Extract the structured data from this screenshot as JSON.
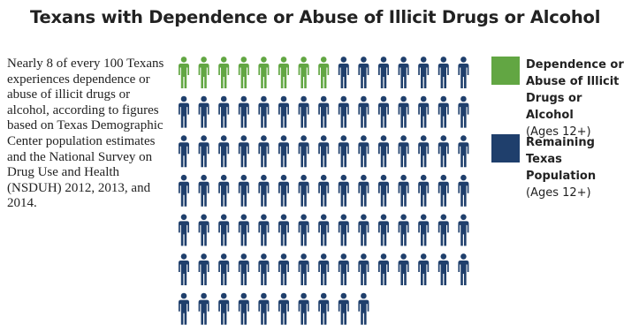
{
  "page": {
    "title": "Texans with Dependence or Abuse of Illicit Drugs or Alcohol",
    "description": "Nearly 8 of every 100 Texans experiences dependence or abuse of illicit drugs or alcohol, according to figures based on Texas Demographic Center population estimates and the National Survey on Drug Use and Health (NSDUH) 2012, 2013, and 2014."
  },
  "legend": {
    "items": [
      {
        "line1": "Dependence or",
        "line2": "Abuse of Illicit",
        "line3": "Drugs or Alcohol",
        "line4": "(Ages 12+)",
        "color": "#62a643"
      },
      {
        "line1": "Remaining Texas",
        "line2": "Population",
        "line3": "(Ages 12+)",
        "color": "#1f3f6c"
      }
    ]
  },
  "chart_data": {
    "type": "pictograph",
    "total": 100,
    "icons_per_row": 15,
    "series": [
      {
        "name": "Dependence or Abuse of Illicit Drugs or Alcohol (Ages 12+)",
        "value": 8,
        "color": "#62a643"
      },
      {
        "name": "Remaining Texas Population (Ages 12+)",
        "value": 92,
        "color": "#1f3f6c"
      }
    ]
  }
}
